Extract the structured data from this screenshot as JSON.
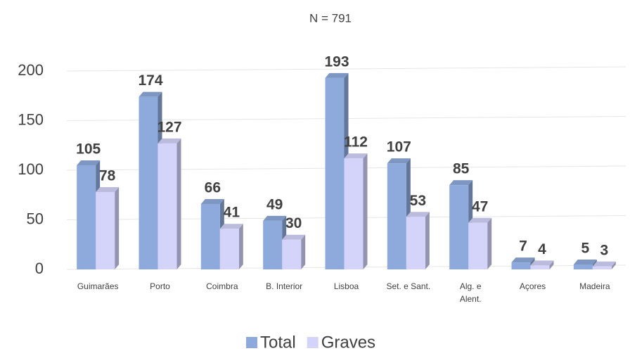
{
  "chart_data": {
    "type": "bar3d",
    "title": "N = 791",
    "categories": [
      "Guimarães",
      "Porto",
      "Coimbra",
      "B. Interior",
      "Lisboa",
      "Set. e Sant.",
      "Alg. e\nAlent.",
      "Açores",
      "Madeira"
    ],
    "series": [
      {
        "name": "Total",
        "color": "#8eaadc",
        "values": [
          105,
          174,
          66,
          49,
          193,
          107,
          85,
          7,
          5
        ]
      },
      {
        "name": "Graves",
        "color": "#d4d4fb",
        "values": [
          78,
          127,
          41,
          30,
          112,
          53,
          47,
          4,
          3
        ]
      }
    ],
    "ylim": [
      0,
      200
    ],
    "yticks": [
      0,
      50,
      100,
      150,
      200
    ],
    "grid": true,
    "legend": "bottom"
  }
}
